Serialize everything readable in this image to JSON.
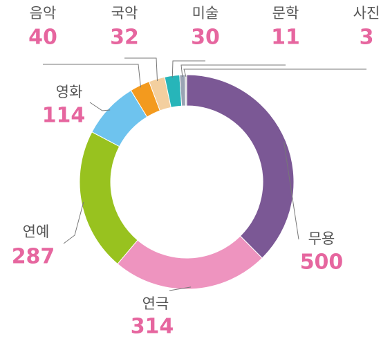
{
  "chart_data": {
    "type": "donut",
    "categories": [
      "무용",
      "연극",
      "연예",
      "영화",
      "음악",
      "국악",
      "미술",
      "문학",
      "사진"
    ],
    "values": [
      500,
      314,
      287,
      114,
      40,
      32,
      30,
      11,
      3
    ],
    "colors": [
      "#7b5895",
      "#ee94bf",
      "#98c21f",
      "#6ec3ee",
      "#f39a1e",
      "#f3cf9f",
      "#27b5b9",
      "#9aa4b4",
      "#cfcfcf"
    ]
  }
}
